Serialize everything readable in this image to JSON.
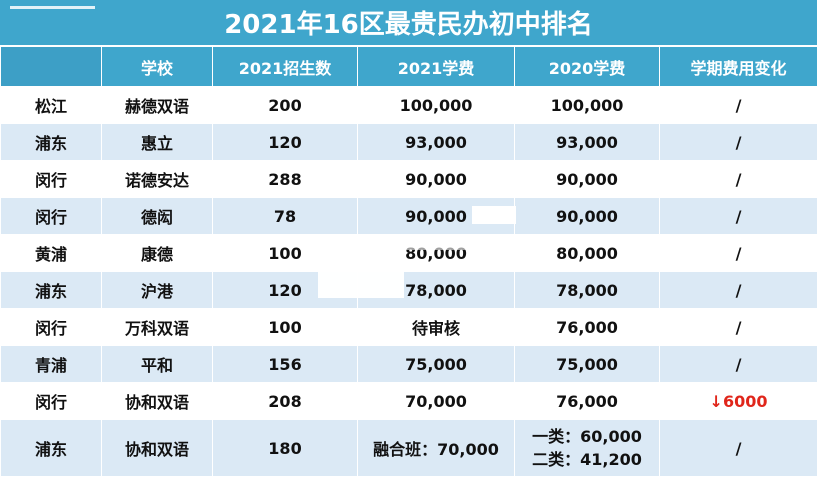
{
  "title": "2021年16区最贵民办初中排名",
  "columns": [
    "",
    "学校",
    "2021招生数",
    "2021学费",
    "2020学费",
    "学期费用变化"
  ],
  "rows": [
    {
      "district": "松江",
      "school": "赫德双语",
      "enrollment_2021": "200",
      "fee_2021": "100,000",
      "fee_2020": "100,000",
      "change": "/"
    },
    {
      "district": "浦东",
      "school": "惠立",
      "enrollment_2021": "120",
      "fee_2021": "93,000",
      "fee_2020": "93,000",
      "change": "/"
    },
    {
      "district": "闵行",
      "school": "诺德安达",
      "enrollment_2021": "288",
      "fee_2021": "90,000",
      "fee_2020": "90,000",
      "change": "/"
    },
    {
      "district": "闵行",
      "school": "德闳",
      "enrollment_2021": "78",
      "fee_2021": "90,000",
      "fee_2020": "90,000",
      "change": "/"
    },
    {
      "district": "黄浦",
      "school": "康德",
      "enrollment_2021": "100",
      "fee_2021": "80,000",
      "fee_2020": "80,000",
      "change": "/"
    },
    {
      "district": "浦东",
      "school": "沪港",
      "enrollment_2021": "120",
      "fee_2021": "78,000",
      "fee_2020": "78,000",
      "change": "/"
    },
    {
      "district": "闵行",
      "school": "万科双语",
      "enrollment_2021": "100",
      "fee_2021": "待审核",
      "fee_2020": "76,000",
      "change": "/"
    },
    {
      "district": "青浦",
      "school": "平和",
      "enrollment_2021": "156",
      "fee_2021": "75,000",
      "fee_2020": "75,000",
      "change": "/"
    },
    {
      "district": "闵行",
      "school": "协和双语",
      "enrollment_2021": "208",
      "fee_2021": "70,000",
      "fee_2020": "76,000",
      "change": "↓6000"
    },
    {
      "district": "浦东",
      "school": "协和双语",
      "enrollment_2021": "180",
      "fee_2021": "融合班：70,000",
      "fee_2020_line1": "一类：60,000",
      "fee_2020_line2": "二类：41,200",
      "change": "/"
    }
  ],
  "colors": {
    "header_blue": "#3fa6cc",
    "stripe_blue": "#dbe9f5",
    "decrease_red": "#e0261b"
  }
}
